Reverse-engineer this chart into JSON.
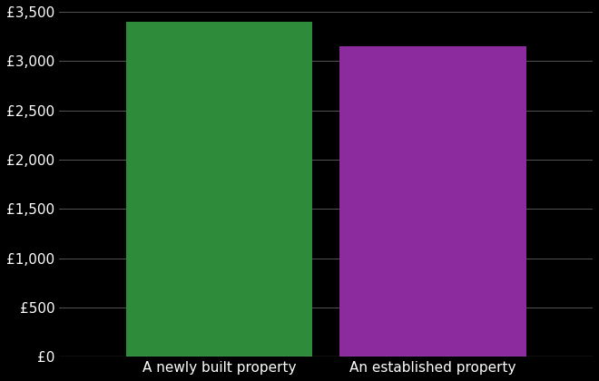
{
  "categories": [
    "A newly built property",
    "An established property"
  ],
  "values": [
    3400,
    3150
  ],
  "bar_colors": [
    "#2e8b3a",
    "#8b2b9e"
  ],
  "background_color": "#000000",
  "text_color": "#ffffff",
  "grid_color": "#555555",
  "ylim": [
    0,
    3500
  ],
  "yticks": [
    0,
    500,
    1000,
    1500,
    2000,
    2500,
    3000,
    3500
  ],
  "ytick_labels": [
    "£0",
    "£500",
    "£1,000",
    "£1,500",
    "£2,000",
    "£2,500",
    "£3,000",
    "£3,500"
  ],
  "bar_width": 0.35,
  "tick_fontsize": 11,
  "label_fontsize": 11
}
